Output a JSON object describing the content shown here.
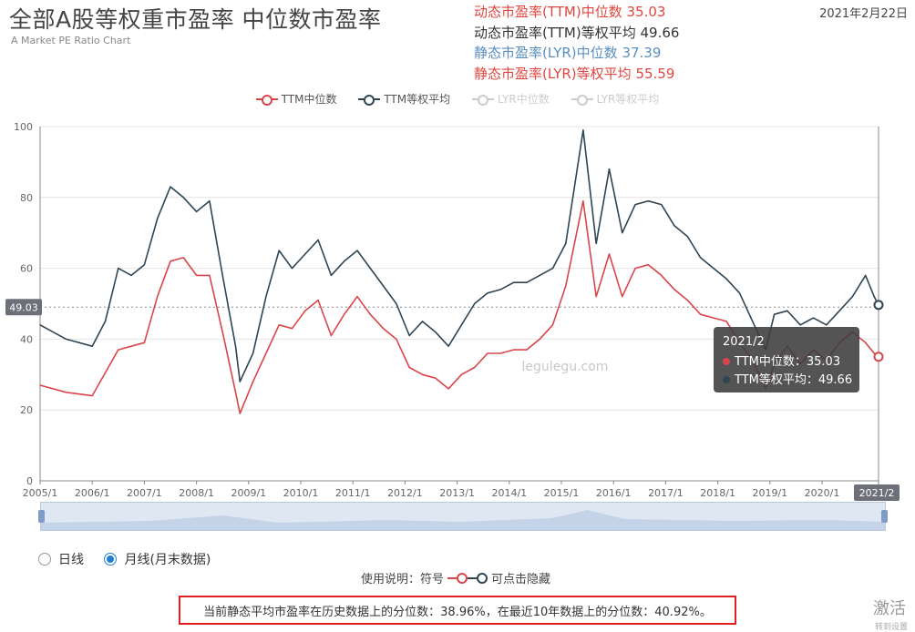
{
  "title": "全部A股等权重市盈率 中位数市盈率",
  "subtitle": "A Market PE Ratio Chart",
  "date": "2021年2月22日",
  "stats": [
    {
      "label": "动态市盈率(TTM)中位数",
      "value": "35.03",
      "color": "#e0463f"
    },
    {
      "label": "动态市盈率(TTM)等权平均",
      "value": "49.66",
      "color": "#333333"
    },
    {
      "label": "静态市盈率(LYR)中位数",
      "value": "37.39",
      "color": "#5a8fbf"
    },
    {
      "label": "静态市盈率(LYR)等权平均",
      "value": "55.59",
      "color": "#e0463f"
    }
  ],
  "legend": [
    {
      "label": "TTM中位数",
      "color": "#d9454a",
      "active": true
    },
    {
      "label": "TTM等权平均",
      "color": "#2f4554",
      "active": true
    },
    {
      "label": "LYR中位数",
      "color": "#cccccc",
      "active": false
    },
    {
      "label": "LYR等权平均",
      "color": "#cccccc",
      "active": false
    }
  ],
  "chart_data": {
    "type": "line",
    "ylim": [
      0,
      100
    ],
    "yticks": [
      "0",
      "20",
      "40",
      "60",
      "80",
      "100"
    ],
    "x_labels": [
      "2005/1",
      "2006/1",
      "2007/1",
      "2008/1",
      "2009/1",
      "2010/1",
      "2011/1",
      "2012/1",
      "2013/1",
      "2014/1",
      "2015/1",
      "2016/1",
      "2017/1",
      "2018/1",
      "2019/1",
      "2020/1",
      "2021/2"
    ],
    "grid": true,
    "markline": {
      "value": "49.03"
    },
    "axis_pointer_label": "2021/2",
    "watermark": "legulegu.com",
    "series": [
      {
        "name": "TTM中位数",
        "color": "#d9454a",
        "points": [
          [
            "2005/1",
            27
          ],
          [
            "2005/7",
            25
          ],
          [
            "2006/1",
            24
          ],
          [
            "2006/7",
            37
          ],
          [
            "2007/1",
            39
          ],
          [
            "2007/4",
            52
          ],
          [
            "2007/7",
            62
          ],
          [
            "2007/10",
            63
          ],
          [
            "2008/1",
            58
          ],
          [
            "2008/4",
            58
          ],
          [
            "2008/7",
            42
          ],
          [
            "2008/10",
            25
          ],
          [
            "2008/11",
            19
          ],
          [
            "2009/2",
            28
          ],
          [
            "2009/5",
            36
          ],
          [
            "2009/8",
            44
          ],
          [
            "2009/11",
            43
          ],
          [
            "2010/2",
            48
          ],
          [
            "2010/5",
            51
          ],
          [
            "2010/8",
            41
          ],
          [
            "2010/11",
            47
          ],
          [
            "2011/2",
            52
          ],
          [
            "2011/5",
            47
          ],
          [
            "2011/8",
            43
          ],
          [
            "2011/11",
            40
          ],
          [
            "2012/2",
            32
          ],
          [
            "2012/5",
            30
          ],
          [
            "2012/8",
            29
          ],
          [
            "2012/11",
            26
          ],
          [
            "2013/2",
            30
          ],
          [
            "2013/5",
            32
          ],
          [
            "2013/8",
            36
          ],
          [
            "2013/11",
            36
          ],
          [
            "2014/2",
            37
          ],
          [
            "2014/5",
            37
          ],
          [
            "2014/8",
            40
          ],
          [
            "2014/11",
            44
          ],
          [
            "2015/2",
            55
          ],
          [
            "2015/6",
            79
          ],
          [
            "2015/9",
            52
          ],
          [
            "2015/12",
            64
          ],
          [
            "2016/3",
            52
          ],
          [
            "2016/6",
            60
          ],
          [
            "2016/9",
            61
          ],
          [
            "2016/12",
            58
          ],
          [
            "2017/3",
            54
          ],
          [
            "2017/6",
            51
          ],
          [
            "2017/9",
            47
          ],
          [
            "2017/12",
            46
          ],
          [
            "2018/3",
            45
          ],
          [
            "2018/6",
            39
          ],
          [
            "2018/9",
            34
          ],
          [
            "2018/12",
            26
          ],
          [
            "2019/2",
            33
          ],
          [
            "2019/5",
            38
          ],
          [
            "2019/8",
            33
          ],
          [
            "2019/11",
            37
          ],
          [
            "2020/2",
            34
          ],
          [
            "2020/5",
            39
          ],
          [
            "2020/8",
            42
          ],
          [
            "2020/11",
            39
          ],
          [
            "2021/1",
            36
          ],
          [
            "2021/2",
            35.03
          ]
        ]
      },
      {
        "name": "TTM等权平均",
        "color": "#2f4554",
        "points": [
          [
            "2005/1",
            44
          ],
          [
            "2005/7",
            40
          ],
          [
            "2006/1",
            38
          ],
          [
            "2006/4",
            45
          ],
          [
            "2006/7",
            60
          ],
          [
            "2006/10",
            58
          ],
          [
            "2007/1",
            61
          ],
          [
            "2007/4",
            74
          ],
          [
            "2007/7",
            83
          ],
          [
            "2007/10",
            80
          ],
          [
            "2008/1",
            76
          ],
          [
            "2008/4",
            79
          ],
          [
            "2008/7",
            58
          ],
          [
            "2008/10",
            38
          ],
          [
            "2008/11",
            28
          ],
          [
            "2009/2",
            36
          ],
          [
            "2009/5",
            52
          ],
          [
            "2009/8",
            65
          ],
          [
            "2009/11",
            60
          ],
          [
            "2010/2",
            64
          ],
          [
            "2010/5",
            68
          ],
          [
            "2010/8",
            58
          ],
          [
            "2010/11",
            62
          ],
          [
            "2011/2",
            65
          ],
          [
            "2011/5",
            60
          ],
          [
            "2011/8",
            55
          ],
          [
            "2011/11",
            50
          ],
          [
            "2012/2",
            41
          ],
          [
            "2012/5",
            45
          ],
          [
            "2012/8",
            42
          ],
          [
            "2012/11",
            38
          ],
          [
            "2013/2",
            44
          ],
          [
            "2013/5",
            50
          ],
          [
            "2013/8",
            53
          ],
          [
            "2013/11",
            54
          ],
          [
            "2014/2",
            56
          ],
          [
            "2014/5",
            56
          ],
          [
            "2014/8",
            58
          ],
          [
            "2014/11",
            60
          ],
          [
            "2015/2",
            67
          ],
          [
            "2015/6",
            99
          ],
          [
            "2015/9",
            67
          ],
          [
            "2015/12",
            88
          ],
          [
            "2016/3",
            70
          ],
          [
            "2016/6",
            78
          ],
          [
            "2016/9",
            79
          ],
          [
            "2016/12",
            78
          ],
          [
            "2017/3",
            72
          ],
          [
            "2017/6",
            69
          ],
          [
            "2017/9",
            63
          ],
          [
            "2017/12",
            60
          ],
          [
            "2018/3",
            57
          ],
          [
            "2018/6",
            53
          ],
          [
            "2018/9",
            45
          ],
          [
            "2018/12",
            37
          ],
          [
            "2019/2",
            47
          ],
          [
            "2019/5",
            48
          ],
          [
            "2019/8",
            44
          ],
          [
            "2019/11",
            46
          ],
          [
            "2020/2",
            44
          ],
          [
            "2020/5",
            48
          ],
          [
            "2020/8",
            52
          ],
          [
            "2020/11",
            58
          ],
          [
            "2021/1",
            52
          ],
          [
            "2021/2",
            49.66
          ]
        ]
      }
    ]
  },
  "tooltip": {
    "date": "2021/2",
    "rows": [
      {
        "label": "TTM中位数：",
        "value": "35.03",
        "color": "#d9454a"
      },
      {
        "label": "TTM等权平均：",
        "value": "49.66",
        "color": "#2f4554"
      }
    ]
  },
  "radios": [
    {
      "label": "日线",
      "checked": false
    },
    {
      "label": "月线(月末数据)",
      "checked": true
    }
  ],
  "usage": {
    "text1": "使用说明：符号",
    "text2": "可点击隐藏"
  },
  "note": "当前静态平均市盈率在历史数据上的分位数：38.96%，在最近10年数据上的分位数：40.92%。",
  "watermark": "激活",
  "watermark_small": "转到设置"
}
